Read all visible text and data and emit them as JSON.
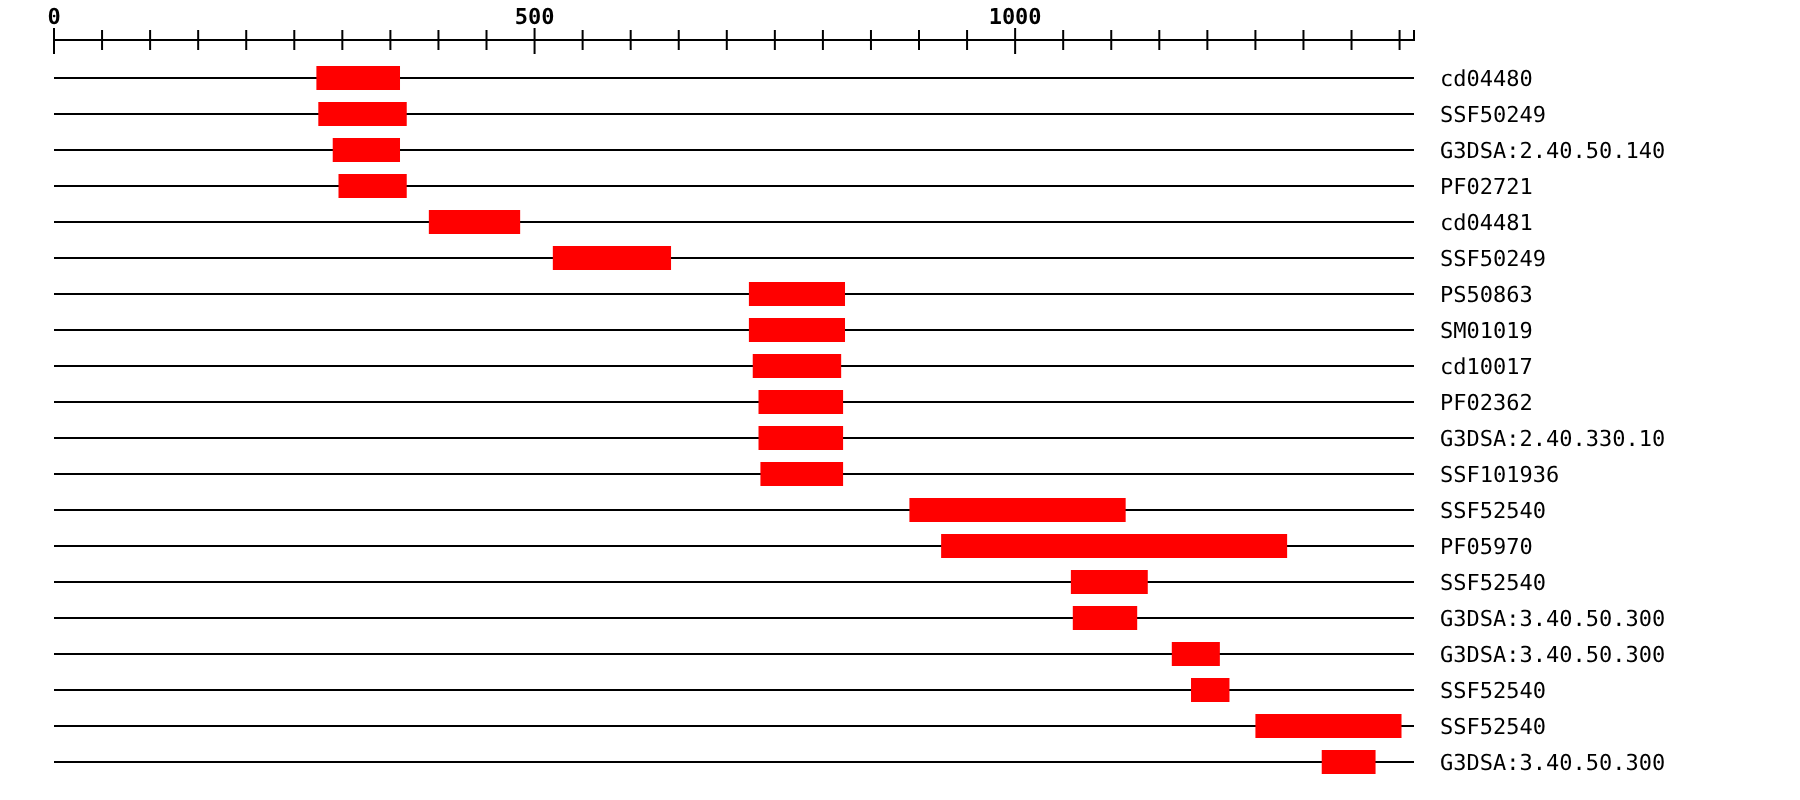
{
  "chart_data": {
    "type": "bar",
    "orientation": "horizontal",
    "grid": "y",
    "categories": [
      "cd04480",
      "SSF50249",
      "G3DSA:2.40.50.140",
      "PF02721",
      "cd04481",
      "SSF50249",
      "PS50863",
      "SM01019",
      "cd10017",
      "PF02362",
      "G3DSA:2.40.330.10",
      "SSF101936",
      "SSF52540",
      "PF05970",
      "SSF52540",
      "G3DSA:3.40.50.300",
      "G3DSA:3.40.50.300",
      "SSF52540",
      "SSF52540",
      "G3DSA:3.40.50.300"
    ],
    "base": [
      273,
      275,
      290,
      296,
      390,
      519,
      723,
      723,
      727,
      733,
      733,
      735,
      890,
      923,
      1058,
      1060,
      1163,
      1183,
      1250,
      1319
    ],
    "values": [
      87,
      92,
      70,
      71,
      95,
      123,
      100,
      100,
      92,
      88,
      88,
      86,
      225,
      360,
      80,
      67,
      50,
      40,
      152,
      56
    ],
    "color": "#ff0000",
    "xlim": [
      0,
      1415
    ],
    "xticks": [
      0,
      {
        "value": 50,
        "label": null
      },
      {
        "value": 100,
        "label": null
      },
      {
        "value": 150,
        "label": null
      },
      {
        "value": 200,
        "label": null
      },
      {
        "value": 250,
        "label": null
      },
      {
        "value": 300,
        "label": null
      },
      {
        "value": 350,
        "label": null
      },
      {
        "value": 400,
        "label": null
      },
      {
        "value": 450,
        "label": null
      },
      500,
      {
        "value": 550,
        "label": null
      },
      {
        "value": 600,
        "label": null
      },
      {
        "value": 650,
        "label": null
      },
      {
        "value": 700,
        "label": null
      },
      {
        "value": 750,
        "label": null
      },
      {
        "value": 800,
        "label": null
      },
      {
        "value": 850,
        "label": null
      },
      {
        "value": 900,
        "label": null
      },
      {
        "value": 950,
        "label": null
      },
      1000,
      {
        "value": 1050,
        "label": null
      },
      {
        "value": 1100,
        "label": null
      },
      {
        "value": 1150,
        "label": null
      },
      {
        "value": 1200,
        "label": null
      },
      {
        "value": 1250,
        "label": null
      },
      {
        "value": 1300,
        "label": null
      },
      {
        "value": 1350,
        "label": null
      },
      {
        "value": 1400,
        "label": null
      }
    ]
  }
}
